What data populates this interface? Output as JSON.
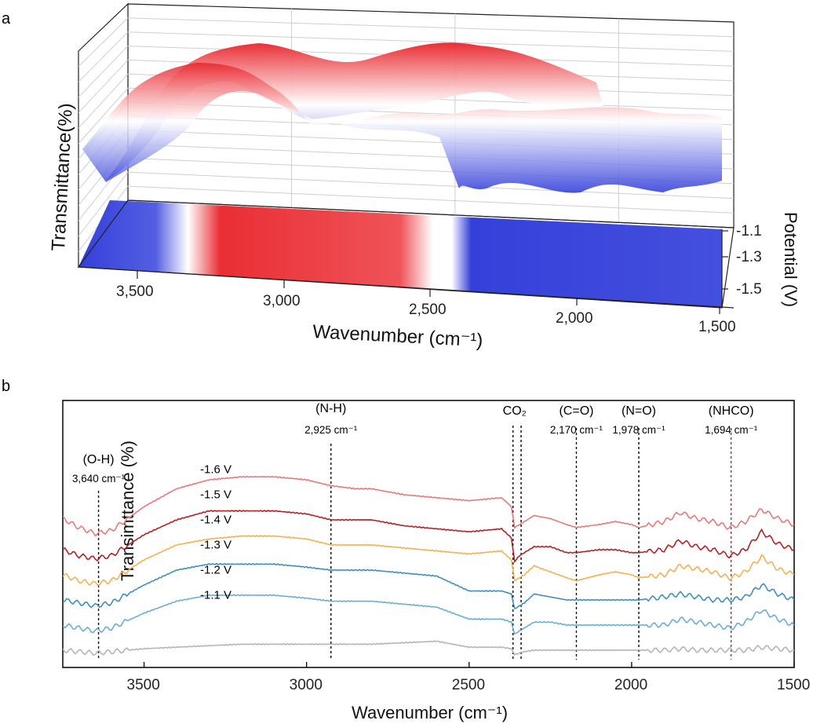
{
  "panel_a": {
    "letter": "a",
    "xlabel": "Wavenumber (cm⁻¹)",
    "ylabel": "Transmittance(%)",
    "zlabel": "Potential (V)",
    "xticks": [
      "3,500",
      "3,000",
      "2,500",
      "2,000",
      "1,500"
    ],
    "zticks": [
      "-1.1",
      "-1.3",
      "-1.5"
    ],
    "colors": {
      "high": "#e8232a",
      "mid": "#ffffff",
      "low": "#2a36d8"
    }
  },
  "panel_b": {
    "letter": "b",
    "xlabel": "Wavenumber (cm⁻¹)",
    "ylabel": "Transimttance (%)",
    "xticks": [
      "3500",
      "3000",
      "2500",
      "2000",
      "1500"
    ],
    "annotations": [
      {
        "label": "(O-H)",
        "value": "3,640 cm⁻¹",
        "x": 3640,
        "color": "#000000"
      },
      {
        "label": "(N-H)",
        "value": "2,925 cm⁻¹",
        "x": 2925,
        "color": "#000000"
      },
      {
        "label": "CO₂",
        "value": "",
        "x": 2360,
        "color": "#000000"
      },
      {
        "label": "(C=O)",
        "value": "2,170 cm⁻¹",
        "x": 2170,
        "color": "#000000"
      },
      {
        "label": "(N=O)",
        "value": "1,978 cm⁻¹",
        "x": 1978,
        "color": "#000000"
      },
      {
        "label": "(NHCO)",
        "value": "1,694 cm⁻¹",
        "x": 1694,
        "color": "#b22222"
      }
    ]
  },
  "chart_data": [
    {
      "type": "heatmap",
      "title": "",
      "xlabel": "Wavenumber (cm⁻¹)",
      "ylabel": "Transmittance(%)",
      "zlabel": "Potential (V)",
      "xlim": [
        3750,
        1500
      ],
      "zlim": [
        -1.1,
        -1.6
      ],
      "grid": true
    },
    {
      "type": "line",
      "title": "",
      "xlabel": "Wavenumber (cm⁻¹)",
      "ylabel": "Transimttance (%)",
      "xlim": [
        3750,
        1500
      ],
      "grid": false,
      "legend": "labels beside curves",
      "x": [
        3750,
        3700,
        3650,
        3600,
        3500,
        3400,
        3300,
        3200,
        3100,
        3000,
        2925,
        2850,
        2800,
        2700,
        2600,
        2500,
        2400,
        2370,
        2360,
        2345,
        2330,
        2300,
        2250,
        2200,
        2170,
        2100,
        2050,
        2000,
        1978,
        1900,
        1850,
        1800,
        1750,
        1700,
        1694,
        1650,
        1600,
        1550,
        1500
      ],
      "series": [
        {
          "name": "-1.6 V",
          "color": "#e8787c",
          "offset": 6,
          "values": [
            0.2,
            -0.1,
            -0.3,
            -0.2,
            0.6,
            1.2,
            1.5,
            1.6,
            1.6,
            1.5,
            1.3,
            1.2,
            1.2,
            1.0,
            0.9,
            0.8,
            0.9,
            0.6,
            -0.1,
            0.0,
            0.1,
            0.3,
            0.2,
            0.0,
            -0.1,
            0.0,
            0.1,
            0.0,
            -0.1,
            0.1,
            0.4,
            0.2,
            0.1,
            -0.1,
            -0.1,
            0.1,
            0.5,
            0.2,
            0.0
          ]
        },
        {
          "name": "-1.5 V",
          "color": "#b52025",
          "offset": 5,
          "values": [
            0.0,
            -0.2,
            -0.3,
            -0.2,
            0.5,
            1.0,
            1.3,
            1.3,
            1.3,
            1.2,
            1.0,
            1.0,
            1.0,
            0.8,
            0.7,
            0.6,
            0.7,
            0.4,
            -0.4,
            -0.2,
            -0.1,
            0.1,
            0.1,
            -0.1,
            -0.1,
            0.0,
            0.0,
            -0.1,
            -0.1,
            0.0,
            0.3,
            0.1,
            0.0,
            -0.2,
            -0.2,
            0.0,
            0.6,
            0.2,
            0.0
          ]
        },
        {
          "name": "-1.4 V",
          "color": "#f2b150",
          "offset": 4,
          "values": [
            0.0,
            -0.2,
            -0.3,
            -0.2,
            0.5,
            1.0,
            1.2,
            1.3,
            1.3,
            1.2,
            1.0,
            1.0,
            1.0,
            0.9,
            0.8,
            0.7,
            0.8,
            0.5,
            -0.2,
            -0.1,
            0.0,
            0.3,
            0.1,
            -0.1,
            -0.2,
            0.0,
            0.1,
            0.0,
            -0.1,
            0.0,
            0.3,
            0.2,
            0.1,
            -0.1,
            -0.1,
            0.1,
            0.6,
            0.2,
            0.0
          ]
        },
        {
          "name": "-1.3 V",
          "color": "#3f8fbe",
          "offset": 3,
          "values": [
            0.0,
            -0.1,
            -0.2,
            -0.1,
            0.5,
            1.0,
            1.2,
            1.2,
            1.2,
            1.1,
            1.0,
            1.0,
            1.0,
            0.9,
            0.8,
            0.3,
            0.3,
            0.2,
            -0.3,
            -0.2,
            -0.1,
            0.2,
            0.1,
            0.0,
            0.0,
            0.0,
            0.0,
            0.0,
            0.0,
            0.1,
            0.2,
            0.1,
            0.0,
            0.0,
            0.0,
            0.1,
            0.5,
            0.2,
            0.0
          ]
        },
        {
          "name": "-1.2 V",
          "color": "#6aaed6",
          "offset": 2,
          "values": [
            0.0,
            -0.1,
            -0.2,
            -0.1,
            0.4,
            0.8,
            1.0,
            1.0,
            1.0,
            0.9,
            0.8,
            0.8,
            0.8,
            0.7,
            0.6,
            0.2,
            0.2,
            0.1,
            -0.3,
            -0.2,
            -0.1,
            0.1,
            0.1,
            0.0,
            0.0,
            0.0,
            0.0,
            0.0,
            0.0,
            0.0,
            0.2,
            0.1,
            0.0,
            -0.1,
            -0.1,
            0.1,
            0.5,
            0.2,
            0.0
          ]
        },
        {
          "name": "-1.1 V",
          "color": "#b5b5b5",
          "offset": 1,
          "values": [
            0.0,
            -0.05,
            -0.1,
            -0.05,
            0.05,
            0.1,
            0.15,
            0.2,
            0.2,
            0.2,
            0.2,
            0.2,
            0.2,
            0.25,
            0.3,
            0.1,
            0.1,
            0.05,
            -0.15,
            -0.1,
            -0.05,
            0.0,
            0.0,
            0.0,
            0.0,
            0.0,
            0.0,
            0.0,
            0.0,
            0.0,
            0.05,
            0.0,
            0.0,
            0.0,
            0.0,
            0.0,
            0.1,
            0.05,
            0.0
          ]
        }
      ]
    }
  ]
}
